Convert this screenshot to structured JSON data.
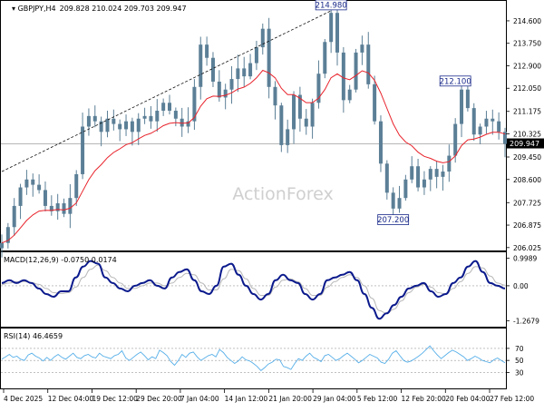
{
  "colors": {
    "candle": "#5b7f96",
    "ma": "#e8232b",
    "trendline": "#111111",
    "macd": "#0b1a8c",
    "signal": "#b8b8b8",
    "rsi": "#55aee8",
    "level_box": "#1a2a8a",
    "watermark": "#cfcfcf",
    "grid": "#c9c9c9",
    "axis": "#000000"
  },
  "chart_data": [
    {
      "type": "candlestick",
      "title": "GBPJPY,H4",
      "ohlc_header": "209.828 210.024 209.703 209.947",
      "watermark": "ActionForex",
      "yticks": [
        "214.600",
        "213.750",
        "212.900",
        "212.050",
        "211.175",
        "210.325",
        "209.450",
        "208.600",
        "207.725",
        "206.875",
        "206.025"
      ],
      "ytick_values": [
        214.6,
        213.75,
        212.9,
        212.05,
        211.175,
        210.325,
        209.45,
        208.6,
        207.725,
        206.875,
        206.025
      ],
      "ylim": [
        205.95,
        215.25
      ],
      "current_price": 209.947,
      "current_price_label": "209.947",
      "annotations": [
        {
          "text": "214.980",
          "value": 214.98,
          "x_index": 53
        },
        {
          "text": "212.100",
          "value": 212.1,
          "x_index": 73
        },
        {
          "text": "207.200",
          "value": 207.2,
          "x_index": 63
        }
      ],
      "x_tick_labels": [
        "4 Dec 2025",
        "12 Dec 04:00",
        "19 Dec 12:00",
        "29 Dec 20:00",
        "7 Jan 04:00",
        "14 Jan 12:00",
        "21 Jan 20:00",
        "29 Jan 04:00",
        "5 Feb 12:00",
        "12 Feb 20:00",
        "20 Feb 04:00",
        "27 Feb 12:00"
      ],
      "trendline": {
        "from": {
          "x_index": 0,
          "value": 208.9
        },
        "to": {
          "x_index": 53,
          "value": 214.98
        }
      },
      "close": [
        206.2,
        206.8,
        207.6,
        208.3,
        208.6,
        208.4,
        208.2,
        207.6,
        207.4,
        207.7,
        207.3,
        207.9,
        208.8,
        210.6,
        211.0,
        210.8,
        210.4,
        210.9,
        210.7,
        210.5,
        210.8,
        210.4,
        210.9,
        211.0,
        210.8,
        211.2,
        211.5,
        211.2,
        210.9,
        210.6,
        210.8,
        212.1,
        213.7,
        213.2,
        212.3,
        211.7,
        212.0,
        212.4,
        212.8,
        212.5,
        213.0,
        213.6,
        214.3,
        212.1,
        211.4,
        209.9,
        210.5,
        211.8,
        210.9,
        210.6,
        211.5,
        212.6,
        213.8,
        214.9,
        213.4,
        211.6,
        212.0,
        213.4,
        213.7,
        212.2,
        210.8,
        209.2,
        208.1,
        207.5,
        207.9,
        208.6,
        209.1,
        208.3,
        208.6,
        209.0,
        208.7,
        208.9,
        209.5,
        210.7,
        212.0,
        211.3,
        210.3,
        210.6,
        210.9,
        210.8,
        210.4,
        209.947
      ]
    },
    {
      "type": "line",
      "title": "MACD(12,26,9) -0.0750 0.0174",
      "yticks": [
        "0.9989",
        "0.00",
        "-1.2679"
      ],
      "ytick_values": [
        0.9989,
        0.0,
        -1.2679
      ],
      "ylim": [
        -1.42,
        1.15
      ],
      "series": [
        {
          "values": [
            0.1,
            0.2,
            0.1,
            0.2,
            0.1,
            -0.1,
            -0.3,
            -0.4,
            -0.2,
            -0.2,
            0.3,
            0.7,
            0.9,
            0.8,
            0.3,
            0.1,
            -0.1,
            -0.2,
            0.0,
            0.1,
            0.2,
            0.0,
            -0.1,
            0.3,
            0.5,
            0.6,
            0.2,
            -0.2,
            -0.3,
            0.0,
            0.7,
            0.8,
            0.4,
            0.0,
            -0.3,
            -0.5,
            -0.3,
            0.2,
            0.4,
            0.2,
            0.1,
            -0.3,
            -0.5,
            -0.3,
            0.2,
            0.3,
            0.4,
            0.5,
            0.2,
            -0.3,
            -0.8,
            -1.2,
            -1.0,
            -0.7,
            -0.4,
            -0.1,
            0.0,
            0.1,
            -0.2,
            -0.4,
            -0.3,
            0.1,
            0.3,
            0.7,
            0.9,
            0.5,
            0.1,
            0.0,
            -0.1
          ]
        },
        {
          "values": [
            0.05,
            0.1,
            0.15,
            0.15,
            0.12,
            0.05,
            -0.1,
            -0.25,
            -0.28,
            -0.25,
            -0.05,
            0.3,
            0.6,
            0.75,
            0.55,
            0.3,
            0.1,
            -0.1,
            -0.1,
            0.0,
            0.1,
            0.1,
            0.0,
            0.1,
            0.3,
            0.45,
            0.4,
            0.1,
            -0.15,
            -0.15,
            0.25,
            0.6,
            0.55,
            0.25,
            -0.1,
            -0.35,
            -0.35,
            -0.05,
            0.2,
            0.25,
            0.15,
            -0.1,
            -0.35,
            -0.35,
            -0.05,
            0.15,
            0.3,
            0.4,
            0.3,
            0.0,
            -0.45,
            -0.9,
            -1.0,
            -0.85,
            -0.55,
            -0.25,
            -0.05,
            0.05,
            -0.05,
            -0.25,
            -0.3,
            -0.1,
            0.15,
            0.45,
            0.7,
            0.65,
            0.35,
            0.1,
            0.02
          ]
        }
      ]
    },
    {
      "type": "line",
      "title": "RSI(14) 46.4659",
      "yticks": [
        "70",
        "50",
        "30"
      ],
      "ytick_values": [
        70,
        50,
        30
      ],
      "ylim": [
        5,
        100
      ],
      "series": [
        {
          "values": [
            52,
            56,
            60,
            55,
            57,
            52,
            50,
            59,
            62,
            57,
            54,
            49,
            55,
            50,
            56,
            60,
            55,
            52,
            57,
            62,
            55,
            53,
            58,
            60,
            56,
            54,
            62,
            57,
            55,
            53,
            58,
            60,
            66,
            54,
            50,
            55,
            60,
            64,
            58,
            51,
            56,
            53,
            67,
            63,
            58,
            48,
            42,
            50,
            60,
            55,
            62,
            64,
            56,
            50,
            54,
            58,
            60,
            56,
            68,
            63,
            55,
            50,
            45,
            49,
            56,
            51,
            49,
            45,
            40,
            33,
            38,
            44,
            47,
            52,
            51,
            40,
            38,
            35,
            45,
            53,
            50,
            57,
            62,
            55,
            52,
            48,
            58,
            60,
            55,
            50,
            53,
            58,
            62,
            57,
            52,
            46,
            50,
            55,
            60,
            57,
            54,
            47,
            45,
            52,
            62,
            66,
            58,
            50,
            47,
            49,
            53,
            57,
            62,
            68,
            74,
            66,
            59,
            53,
            58,
            63,
            67,
            64,
            60,
            56,
            50,
            53,
            57,
            54,
            50,
            48,
            46,
            51,
            54,
            50,
            46
          ]
        }
      ]
    }
  ]
}
